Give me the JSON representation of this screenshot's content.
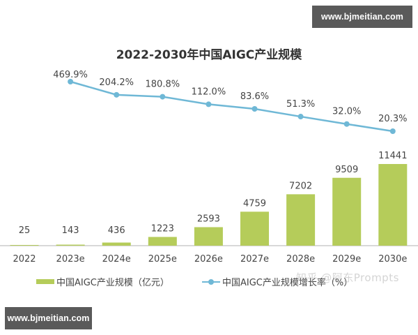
{
  "watermarks": {
    "top_right": "www.bjmeitian.com",
    "bottom_left": "www.bjmeitian.com",
    "overlay": "知乎 @阿东Prompts"
  },
  "colors": {
    "bar": "#b5cc5a",
    "line": "#6fb8d6",
    "axis": "#cccccc",
    "text": "#333333",
    "badge_bg": "#5a5a5a"
  },
  "chart_data": {
    "type": "bar+line",
    "title": "2022-2030年中国AIGC产业规模",
    "xlabel": "",
    "ylabel": "",
    "grid": false,
    "legend_position": "bottom",
    "categories": [
      "2022",
      "2023e",
      "2024e",
      "2025e",
      "2026e",
      "2027e",
      "2028e",
      "2029e",
      "2030e"
    ],
    "series": [
      {
        "name": "中国AIGC产业规模（亿元）",
        "type": "bar",
        "values": [
          25,
          143,
          436,
          1223,
          2593,
          4759,
          7202,
          9509,
          11441
        ],
        "labels": [
          "25",
          "143",
          "436",
          "1223",
          "2593",
          "4759",
          "7202",
          "9509",
          "11441"
        ]
      },
      {
        "name": "中国AIGC产业规模增长率（%）",
        "type": "line",
        "values": [
          null,
          469.9,
          204.2,
          180.8,
          112.0,
          83.6,
          51.3,
          32.0,
          20.3
        ],
        "labels": [
          "",
          "469.9%",
          "204.2%",
          "180.8%",
          "112.0%",
          "83.6%",
          "51.3%",
          "32.0%",
          "20.3%"
        ]
      }
    ]
  },
  "legend": {
    "bar_label": "中国AIGC产业规模（亿元）",
    "line_label": "中国AIGC产业规模增长率（%）"
  }
}
